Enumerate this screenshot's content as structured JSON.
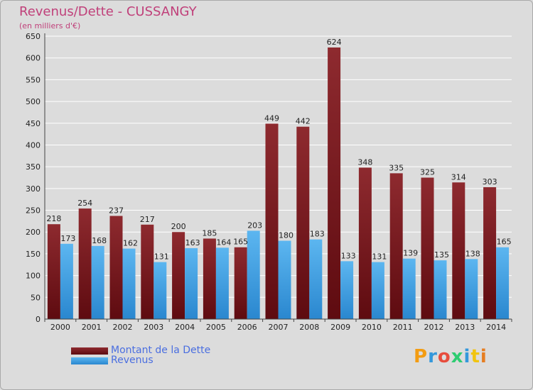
{
  "title": "Revenus/Dette - CUSSANGY",
  "subtitle": "(en milliers d'€)",
  "logo": {
    "letters": [
      "P",
      "r",
      "o",
      "x",
      "i",
      "t",
      "i"
    ],
    "colors": [
      "#f39c12",
      "#3498db",
      "#e74c3c",
      "#2ecc71",
      "#3498db",
      "#f1c40f",
      "#e67e22"
    ]
  },
  "colors": {
    "dette": "#7a1a1f",
    "revenus": "#3f9fe0",
    "grid": "#ffffff",
    "text": "#222222"
  },
  "chart_data": {
    "type": "bar",
    "title": "Revenus/Dette - CUSSANGY",
    "subtitle": "(en milliers d'€)",
    "categories": [
      "2000",
      "2001",
      "2002",
      "2003",
      "2004",
      "2005",
      "2006",
      "2007",
      "2008",
      "2009",
      "2010",
      "2011",
      "2012",
      "2013",
      "2014"
    ],
    "series": [
      {
        "name": "Montant de la Dette",
        "values": [
          218,
          254,
          237,
          217,
          200,
          185,
          165,
          449,
          442,
          624,
          348,
          335,
          325,
          314,
          303
        ]
      },
      {
        "name": "Revenus",
        "values": [
          173,
          168,
          162,
          131,
          163,
          164,
          203,
          180,
          183,
          133,
          131,
          139,
          135,
          138,
          165
        ]
      }
    ],
    "ylim": [
      0,
      650
    ],
    "yticks": [
      0,
      50,
      100,
      150,
      200,
      250,
      300,
      350,
      400,
      450,
      500,
      550,
      600,
      650
    ],
    "grid": true,
    "legend": "bottom-left"
  }
}
